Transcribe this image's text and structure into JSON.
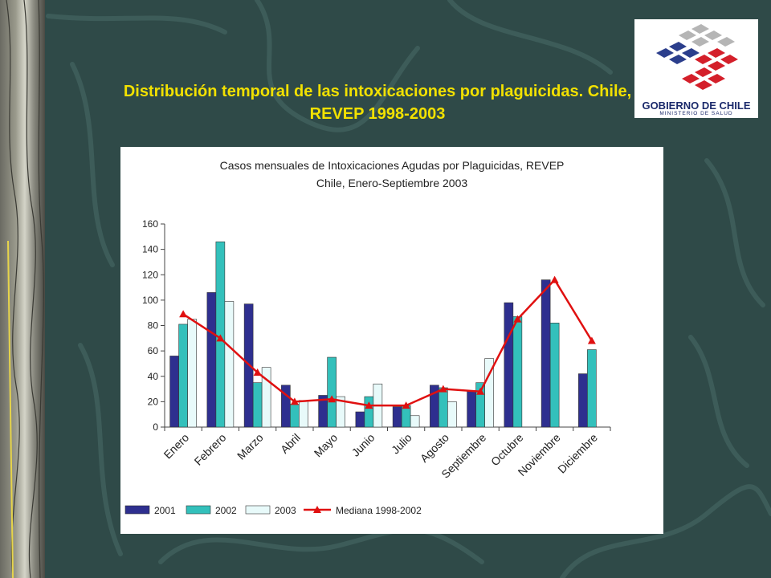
{
  "slide": {
    "title": "Distribución temporal de las intoxicaciones por plaguicidas. Chile, REVEP 1998-2003"
  },
  "logo": {
    "main_text": "GOBIERNO DE CHILE",
    "sub_text": "MINISTERIO DE SALUD",
    "colors": [
      "#2b3e8c",
      "#d41f2a",
      "#b5b5b5"
    ]
  },
  "chart_data": {
    "type": "bar",
    "title": "Casos mensuales de Intoxicaciones Agudas por Plaguicidas, REVEP",
    "subtitle": "Chile, Enero-Septiembre 2003",
    "categories": [
      "Enero",
      "Febrero",
      "Marzo",
      "Abril",
      "Mayo",
      "Junio",
      "Julio",
      "Agosto",
      "Septiembre",
      "Octubre",
      "Noviembre",
      "Diciembre"
    ],
    "y_ticks": [
      0,
      20,
      40,
      60,
      80,
      100,
      120,
      140,
      160
    ],
    "ylim": [
      0,
      160
    ],
    "grid": false,
    "legend_position": "bottom",
    "series": [
      {
        "name": "2001",
        "kind": "bar",
        "color": "#2e2f8f",
        "values": [
          56,
          106,
          97,
          33,
          25,
          12,
          16,
          33,
          28,
          98,
          116,
          42
        ]
      },
      {
        "name": "2002",
        "kind": "bar",
        "color": "#33c0bb",
        "values": [
          81,
          146,
          35,
          18,
          55,
          24,
          17,
          31,
          35,
          87,
          82,
          61
        ]
      },
      {
        "name": "2003",
        "kind": "bar",
        "color": "#e8fafa",
        "values": [
          85,
          99,
          47,
          21,
          24,
          34,
          9,
          20,
          54,
          null,
          null,
          null
        ]
      },
      {
        "name": "Mediana 1998-2002",
        "kind": "line",
        "color": "#e01010",
        "values": [
          89,
          70,
          43,
          20,
          22,
          17,
          17,
          30,
          28,
          85,
          116,
          68
        ]
      }
    ]
  }
}
